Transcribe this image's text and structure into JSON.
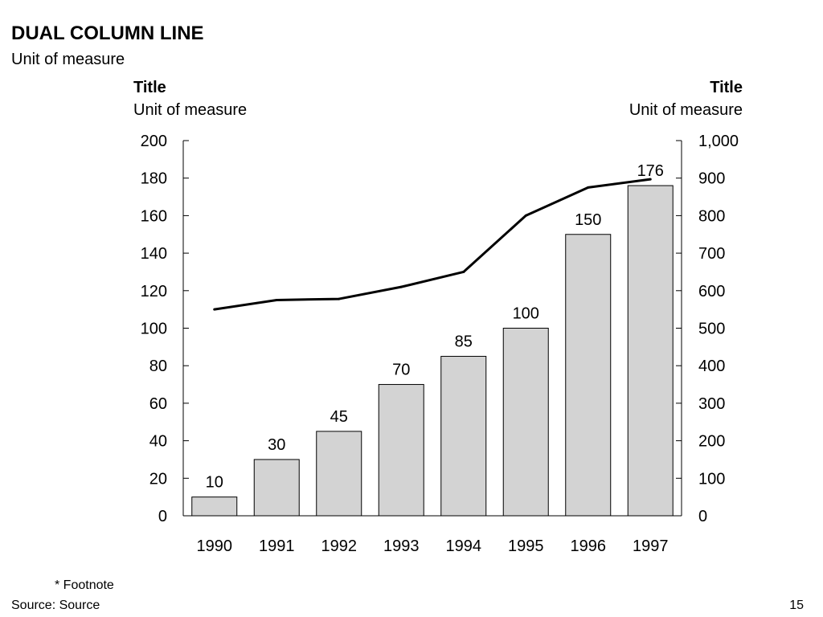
{
  "slide": {
    "title": "DUAL COLUMN LINE",
    "subtitle": "Unit of measure",
    "footnote": "* Footnote",
    "source": "Source: Source",
    "page_number": "15"
  },
  "chart_data": {
    "type": "bar",
    "categories": [
      "1990",
      "1991",
      "1992",
      "1993",
      "1994",
      "1995",
      "1996",
      "1997"
    ],
    "bar_color": "#d3d3d3",
    "line_color": "#000000",
    "grid": false,
    "legend": "none",
    "left_axis": {
      "title": "Title",
      "unit": "Unit of measure",
      "ylim": [
        0,
        200
      ],
      "ticks": [
        0,
        20,
        40,
        60,
        80,
        100,
        120,
        140,
        160,
        180,
        200
      ],
      "tick_labels": [
        "0",
        "20",
        "40",
        "60",
        "80",
        "100",
        "120",
        "140",
        "160",
        "180",
        "200"
      ]
    },
    "right_axis": {
      "title": "Title",
      "unit": "Unit of measure",
      "ylim": [
        0,
        1000
      ],
      "ticks": [
        0,
        100,
        200,
        300,
        400,
        500,
        600,
        700,
        800,
        900,
        1000
      ],
      "tick_labels": [
        "0",
        "100",
        "200",
        "300",
        "400",
        "500",
        "600",
        "700",
        "800",
        "900",
        "1,000"
      ]
    },
    "series": [
      {
        "kind": "bar",
        "axis": "left",
        "values": [
          10,
          30,
          45,
          70,
          85,
          100,
          150,
          176
        ],
        "data_labels": [
          "10",
          "30",
          "45",
          "70",
          "85",
          "100",
          "150",
          "176"
        ]
      },
      {
        "kind": "line",
        "axis": "right",
        "values": [
          550,
          575,
          578,
          610,
          650,
          800,
          875,
          897
        ]
      }
    ]
  }
}
